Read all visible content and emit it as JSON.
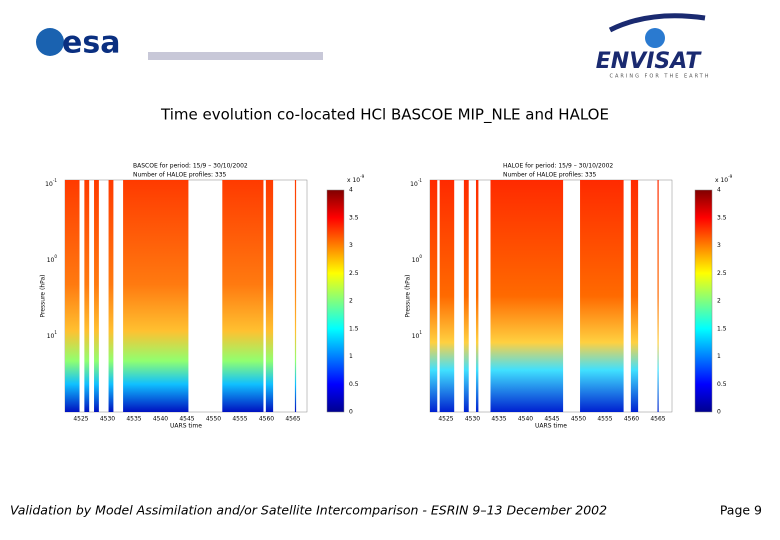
{
  "header": {
    "logo_left": "esa",
    "logo_right": "ENVISAT",
    "tagline": "CARING FOR THE EARTH"
  },
  "title": "Time evolution co-located  HCl BASCOE MIP_NLE and HALOE",
  "panels": [
    {
      "heading": [
        "BASCOE for period: 15/9 – 30/10/2002",
        "Number of HALOE profiles: 335"
      ],
      "ylabel": "Pressure (hPa)",
      "xlabel": "UARS time",
      "yticks": [
        {
          "base": "10",
          "exp": "-1"
        },
        {
          "base": "10",
          "exp": "0"
        },
        {
          "base": "10",
          "exp": "1"
        }
      ],
      "xticks": [
        "4525",
        "4530",
        "4535",
        "4540",
        "4545",
        "4550",
        "4555",
        "4560",
        "4565"
      ],
      "colorbar": {
        "ticks": [
          "0",
          "0.5",
          "1",
          "1.5",
          "2",
          "2.5",
          "3",
          "3.5",
          "4"
        ],
        "scale": {
          "base": "x 10",
          "exp": "-9"
        }
      }
    },
    {
      "heading": [
        "HALOE for period: 15/9 – 30/10/2002",
        "Number of HALOE profiles: 335"
      ],
      "ylabel": "Pressure (hPa)",
      "xlabel": "UARS time",
      "yticks": [
        {
          "base": "10",
          "exp": "-1"
        },
        {
          "base": "10",
          "exp": "0"
        },
        {
          "base": "10",
          "exp": "1"
        }
      ],
      "xticks": [
        "4525",
        "4530",
        "4535",
        "4540",
        "4545",
        "4550",
        "4555",
        "4560",
        "4565"
      ],
      "colorbar": {
        "ticks": [
          "0",
          "0.5",
          "1",
          "1.5",
          "2",
          "2.5",
          "3",
          "3.5",
          "4"
        ],
        "scale": {
          "base": "x 10",
          "exp": "-9"
        }
      }
    }
  ],
  "footer": {
    "text": "Validation by Model Assimilation and/or Satellite Intercomparison - ESRIN 9–13 December 2002",
    "page": "Page 9"
  }
}
